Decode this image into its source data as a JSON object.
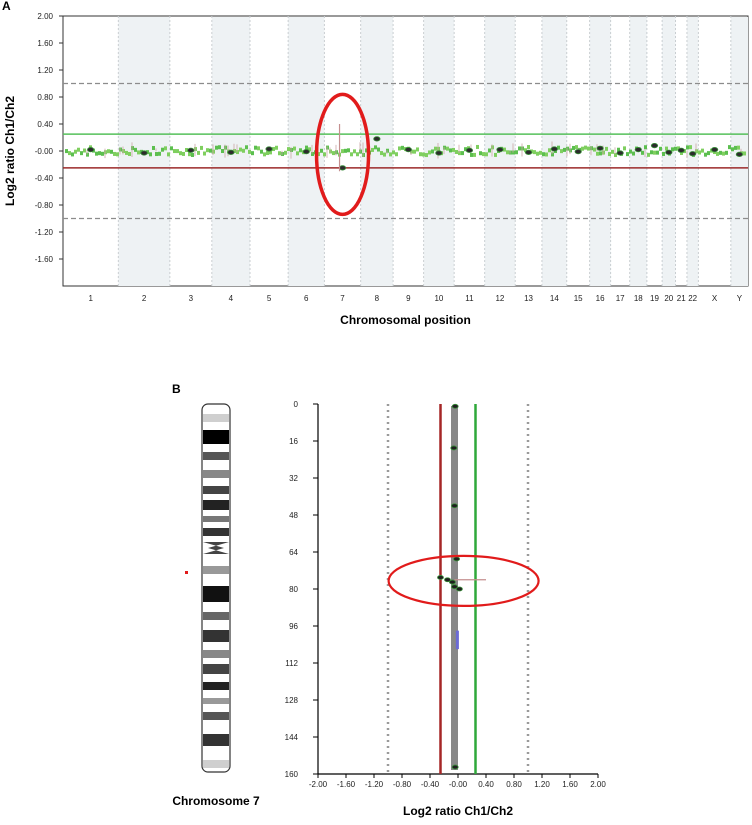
{
  "chart_data": [
    {
      "panel": "A",
      "type": "scatter",
      "title": "",
      "xlabel": "Chromosomal position",
      "ylabel": "Log2 ratio Ch1/Ch2",
      "ylim": [
        -2.0,
        2.0
      ],
      "yticks": [
        "2.00",
        "1.60",
        "1.20",
        "0.80",
        "0.40",
        "-0.00",
        "-0.40",
        "-0.80",
        "-1.20",
        "-1.60"
      ],
      "categories": [
        "1",
        "2",
        "3",
        "4",
        "5",
        "6",
        "7",
        "8",
        "9",
        "10",
        "11",
        "12",
        "13",
        "14",
        "15",
        "16",
        "17",
        "18",
        "19",
        "20",
        "21",
        "22",
        "X",
        "Y"
      ],
      "thresholds": {
        "gain": 0.25,
        "loss": -0.25,
        "upper_dashed": 1.0,
        "lower_dashed": -1.0
      },
      "grid": true,
      "highlight": {
        "category": "7",
        "shape": "ellipse",
        "color": "#e11b1b"
      },
      "series": [
        {
          "values": [
            0.02,
            -0.03,
            0.01,
            -0.02,
            0.03,
            -0.01,
            -0.25,
            0.18,
            0.02,
            -0.03,
            0.01,
            0.02,
            -0.02,
            0.03,
            -0.01,
            0.04,
            -0.03,
            0.02,
            0.08,
            -0.02,
            0.01,
            -0.04,
            0.02,
            -0.05
          ]
        }
      ],
      "colors": {
        "gain_line": "#55c05a",
        "loss_line": "#9b2a2a",
        "points": "#3a8f3a",
        "band": "#eef2f4"
      }
    },
    {
      "panel": "B",
      "type": "scatter",
      "title": "",
      "xlabel": "Log2 ratio Ch1/Ch2",
      "ylabel": "",
      "xlim": [
        -2.0,
        2.0
      ],
      "ylim": [
        0,
        160
      ],
      "xticks": [
        "-2.00",
        "-1.60",
        "-1.20",
        "-0.80",
        "-0.40",
        "-0.00",
        "0.40",
        "0.80",
        "1.20",
        "1.60",
        "2.00"
      ],
      "yticks": [
        "0",
        "16",
        "32",
        "48",
        "64",
        "80",
        "96",
        "112",
        "128",
        "144",
        "160"
      ],
      "thresholds": {
        "loss": -0.25,
        "gain": 0.25,
        "lower_dotted": -1.0,
        "upper_dotted": 1.0
      },
      "highlight": {
        "position_range": [
          72,
          81
        ],
        "shape": "ellipse",
        "color": "#e11b1b"
      },
      "points": [
        {
          "x": -0.04,
          "y": 1
        },
        {
          "x": -0.06,
          "y": 19
        },
        {
          "x": -0.05,
          "y": 44
        },
        {
          "x": -0.02,
          "y": 67
        },
        {
          "x": -0.25,
          "y": 75
        },
        {
          "x": -0.15,
          "y": 76
        },
        {
          "x": -0.08,
          "y": 77
        },
        {
          "x": -0.05,
          "y": 79
        },
        {
          "x": 0.02,
          "y": 80
        },
        {
          "x": -0.04,
          "y": 157
        }
      ],
      "colors": {
        "gain_line": "#2fa83a",
        "loss_line": "#a52626",
        "track": "#888888"
      },
      "chromosome_label": "Chromosome 7"
    }
  ],
  "labels": {
    "panel_a": "A",
    "panel_b": "B",
    "chromosome_caption": "Chromosome 7"
  }
}
